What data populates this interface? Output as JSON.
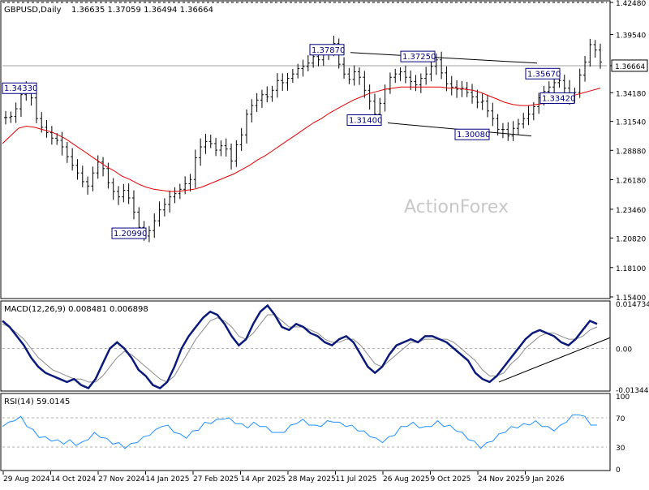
{
  "header": {
    "symbol": "GBPUSD,Daily",
    "ohlc": "1.36635 1.37059 1.36494 1.36664"
  },
  "price_axis": {
    "ticks": [
      "1.42480",
      "1.39540",
      "1.36664",
      "1.34180",
      "1.31540",
      "1.28880",
      "1.26180",
      "1.23460",
      "1.20820",
      "1.18100",
      "1.15400"
    ],
    "current": "1.36664",
    "dashed_level": "1.42480"
  },
  "macd_panel": {
    "title": "MACD(12,26,9) 0.008481 0.006898",
    "ticks": [
      "0.014734",
      "0.00",
      "-0.013442"
    ]
  },
  "rsi_panel": {
    "title": "RSI(14) 59.0145",
    "ticks": [
      "100",
      "70",
      "30",
      "0"
    ]
  },
  "date_axis": [
    "29 Aug 2024",
    "14 Oct 2024",
    "27 Nov 2024",
    "14 Jan 2025",
    "27 Feb 2025",
    "14 Apr 2025",
    "28 May 2025",
    "11 Jul 2025",
    "26 Aug 2025",
    "9 Oct 2025",
    "24 Nov 2025",
    "9 Jan 2026"
  ],
  "annotations": [
    "1.34330",
    "1.20990",
    "1.37870",
    "1.37250",
    "1.31400",
    "1.30080",
    "1.35670",
    "1.33420"
  ],
  "watermark": "ActionForex",
  "colors": {
    "price": "#000000",
    "ma": "#e00000",
    "macd": "#0a1a7a",
    "signal": "#8a8a8a",
    "rsi": "#1e90ff",
    "trendline": "#000000",
    "grid": "#b0b0b0"
  },
  "chart_data": {
    "type": "line",
    "title": "GBPUSD,Daily",
    "x_dates": [
      "29 Aug 2024",
      "14 Oct 2024",
      "27 Nov 2024",
      "14 Jan 2025",
      "27 Feb 2025",
      "14 Apr 2025",
      "28 May 2025",
      "11 Jul 2025",
      "26 Aug 2025",
      "9 Oct 2025",
      "24 Nov 2025",
      "9 Jan 2026"
    ],
    "price_series": {
      "name": "GBPUSD",
      "values": [
        1.319,
        1.32,
        1.327,
        1.34,
        1.346,
        1.337,
        1.318,
        1.31,
        1.305,
        1.3,
        1.298,
        1.292,
        1.283,
        1.275,
        1.268,
        1.26,
        1.256,
        1.268,
        1.278,
        1.272,
        1.259,
        1.251,
        1.246,
        1.252,
        1.245,
        1.232,
        1.218,
        1.21,
        1.215,
        1.224,
        1.234,
        1.239,
        1.246,
        1.249,
        1.253,
        1.258,
        1.262,
        1.282,
        1.292,
        1.297,
        1.295,
        1.289,
        1.293,
        1.29,
        1.279,
        1.294,
        1.303,
        1.322,
        1.33,
        1.335,
        1.34,
        1.338,
        1.344,
        1.353,
        1.351,
        1.355,
        1.359,
        1.364,
        1.366,
        1.369,
        1.375,
        1.372,
        1.377,
        1.38,
        1.387,
        1.368,
        1.359,
        1.354,
        1.361,
        1.356,
        1.344,
        1.334,
        1.322,
        1.332,
        1.345,
        1.356,
        1.359,
        1.361,
        1.356,
        1.352,
        1.349,
        1.355,
        1.359,
        1.366,
        1.372,
        1.36,
        1.35,
        1.347,
        1.345,
        1.346,
        1.342,
        1.338,
        1.333,
        1.334,
        1.325,
        1.318,
        1.308,
        1.308,
        1.302,
        1.309,
        1.313,
        1.318,
        1.322,
        1.329,
        1.337,
        1.343,
        1.347,
        1.351,
        1.353,
        1.346,
        1.337,
        1.342,
        1.358,
        1.37,
        1.386,
        1.381,
        1.37
      ],
      "ma_values": [
        1.295,
        1.302,
        1.309,
        1.311,
        1.31,
        1.308,
        1.306,
        1.303,
        1.299,
        1.294,
        1.289,
        1.284,
        1.279,
        1.274,
        1.27,
        1.265,
        1.262,
        1.258,
        1.255,
        1.253,
        1.252,
        1.251,
        1.251,
        1.252,
        1.253,
        1.255,
        1.258,
        1.261,
        1.264,
        1.267,
        1.271,
        1.275,
        1.28,
        1.284,
        1.289,
        1.294,
        1.299,
        1.304,
        1.309,
        1.314,
        1.318,
        1.323,
        1.327,
        1.331,
        1.335,
        1.338,
        1.341,
        1.343,
        1.345,
        1.346,
        1.347,
        1.347,
        1.347,
        1.347,
        1.347,
        1.347,
        1.346,
        1.346,
        1.345,
        1.344,
        1.342,
        1.339,
        1.336,
        1.333,
        1.331,
        1.33,
        1.33,
        1.331,
        1.332,
        1.334,
        1.336,
        1.338,
        1.34,
        1.342,
        1.344,
        1.346
      ]
    },
    "annotations": [
      {
        "label": "1.34330",
        "value": 1.3433
      },
      {
        "label": "1.20990",
        "value": 1.2099
      },
      {
        "label": "1.37870",
        "value": 1.3787
      },
      {
        "label": "1.37250",
        "value": 1.3725
      },
      {
        "label": "1.31400",
        "value": 1.314
      },
      {
        "label": "1.30080",
        "value": 1.3008
      },
      {
        "label": "1.35670",
        "value": 1.3567
      },
      {
        "label": "1.33420",
        "value": 1.3342
      }
    ],
    "ylim": [
      1.154,
      1.4248
    ],
    "macd": {
      "values": [
        0.009,
        0.007,
        0.004,
        0.001,
        -0.003,
        -0.006,
        -0.008,
        -0.009,
        -0.01,
        -0.011,
        -0.01,
        -0.012,
        -0.013,
        -0.01,
        -0.005,
        0.0,
        0.002,
        0.0,
        -0.003,
        -0.007,
        -0.009,
        -0.012,
        -0.013,
        -0.011,
        -0.006,
        0.0,
        0.004,
        0.007,
        0.01,
        0.012,
        0.011,
        0.008,
        0.004,
        0.001,
        0.003,
        0.008,
        0.012,
        0.014,
        0.011,
        0.007,
        0.006,
        0.008,
        0.007,
        0.005,
        0.004,
        0.002,
        0.001,
        0.003,
        0.004,
        0.002,
        -0.002,
        -0.006,
        -0.008,
        -0.006,
        -0.002,
        0.001,
        0.002,
        0.003,
        0.002,
        0.004,
        0.004,
        0.003,
        0.002,
        0.0,
        -0.002,
        -0.004,
        -0.008,
        -0.01,
        -0.011,
        -0.009,
        -0.006,
        -0.003,
        0.0,
        0.003,
        0.005,
        0.006,
        0.005,
        0.004,
        0.002,
        0.001,
        0.003,
        0.006,
        0.009,
        0.008
      ],
      "signal": [
        0.008,
        0.007,
        0.005,
        0.003,
        0.0,
        -0.003,
        -0.005,
        -0.007,
        -0.008,
        -0.009,
        -0.01,
        -0.01,
        -0.011,
        -0.011,
        -0.009,
        -0.006,
        -0.003,
        -0.001,
        -0.002,
        -0.004,
        -0.006,
        -0.008,
        -0.01,
        -0.011,
        -0.009,
        -0.005,
        -0.001,
        0.003,
        0.006,
        0.009,
        0.01,
        0.009,
        0.007,
        0.004,
        0.003,
        0.005,
        0.008,
        0.011,
        0.011,
        0.009,
        0.007,
        0.007,
        0.007,
        0.006,
        0.005,
        0.003,
        0.002,
        0.002,
        0.003,
        0.003,
        0.001,
        -0.002,
        -0.005,
        -0.006,
        -0.004,
        -0.002,
        0.0,
        0.002,
        0.002,
        0.003,
        0.003,
        0.003,
        0.003,
        0.002,
        0.0,
        -0.002,
        -0.004,
        -0.007,
        -0.009,
        -0.009,
        -0.008,
        -0.005,
        -0.003,
        0.0,
        0.002,
        0.004,
        0.005,
        0.005,
        0.004,
        0.003,
        0.003,
        0.004,
        0.006,
        0.007
      ]
    },
    "rsi": {
      "values": [
        60,
        62,
        68,
        70,
        60,
        52,
        45,
        42,
        40,
        38,
        36,
        38,
        34,
        35,
        42,
        48,
        45,
        40,
        36,
        34,
        30,
        33,
        38,
        42,
        48,
        52,
        60,
        58,
        52,
        46,
        44,
        50,
        55,
        62,
        64,
        66,
        70,
        68,
        64,
        60,
        58,
        62,
        60,
        56,
        52,
        48,
        52,
        58,
        64,
        66,
        62,
        58,
        60,
        64,
        66,
        62,
        60,
        58,
        54,
        50,
        46,
        40,
        38,
        42,
        48,
        56,
        60,
        62,
        58,
        56,
        60,
        64,
        60,
        58,
        54,
        48,
        42,
        36,
        30,
        34,
        40,
        46,
        52,
        56,
        58,
        60,
        62,
        64,
        60,
        56,
        54,
        58,
        66,
        72,
        76,
        70,
        62,
        58
      ]
    }
  }
}
